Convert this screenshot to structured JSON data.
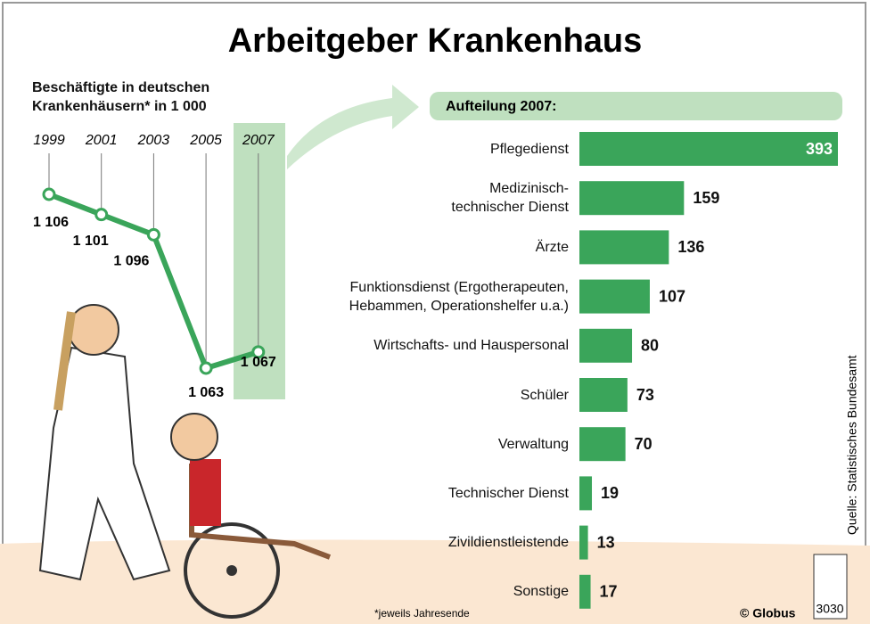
{
  "title": "Arbeitgeber Krankenhaus",
  "chart_data": [
    {
      "type": "line",
      "title": "Beschäftigte in deutschen Krankenhäusern* in 1 000",
      "x": [
        "1999",
        "2001",
        "2003",
        "2005",
        "2007"
      ],
      "values": [
        1106,
        1101,
        1096,
        1063,
        1067
      ],
      "value_labels": [
        "1 106",
        "1 101",
        "1 096",
        "1 063",
        "1 067"
      ],
      "color": "#3aa55a"
    },
    {
      "type": "bar",
      "title": "Aufteilung 2007:",
      "categories": [
        "Pflegedienst",
        "Medizinisch-\ntechnischer Dienst",
        "Ärzte",
        "Funktionsdienst (Ergotherapeuten,\nHebammen, Operationshelfer u.a.)",
        "Wirtschafts- und Hauspersonal",
        "Schüler",
        "Verwaltung",
        "Technischer Dienst",
        "Zivildienstleistende",
        "Sonstige"
      ],
      "values": [
        393,
        159,
        136,
        107,
        80,
        73,
        70,
        19,
        13,
        17
      ],
      "color": "#3aa55a"
    }
  ],
  "footnote": "*jeweils Jahresende",
  "source": "Quelle: Statistisches Bundesamt",
  "copyright": "© Globus",
  "code": "3030"
}
